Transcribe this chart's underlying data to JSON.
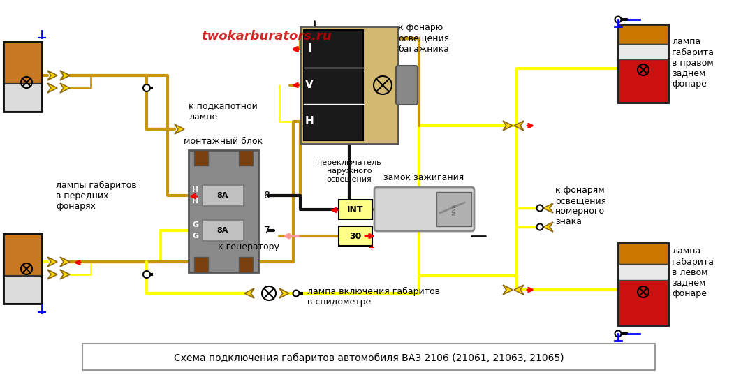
{
  "bg_color": "#ffffff",
  "wire_yellow": "#ffff00",
  "wire_dark_yellow": "#c8960a",
  "wire_black": "#111111",
  "connector_fill": "#FFD700",
  "connector_stroke": "#8B6914",
  "caption": "Схема подключения габаритов автомобиля ВАЗ 2106 (21061, 21063, 21065)",
  "watermark": "twokarburators.ru",
  "labels": {
    "front_lamps": "лампы габаритов\nв передних\nфонарях",
    "underhood": "к подкапотной\nлампе",
    "mounting_block": "монтажный блок",
    "switch": "переключатель\nнаружного\nосвещения",
    "ignition": "замок зажигания",
    "generator": "к генератору",
    "speedo_lamp": "лампа включения габаритов\nв спидометре",
    "trunk_light": "к фонарю\nосвещения\nбагажника",
    "license_lights": "к фонарям\nосвещения\nномерного\nзнака",
    "right_rear": "лампа\nгабарита\nв правом\nзаднем\nфонаре",
    "left_rear": "лампа\nгабарита\nв левом\nзаднем\nфонаре"
  }
}
